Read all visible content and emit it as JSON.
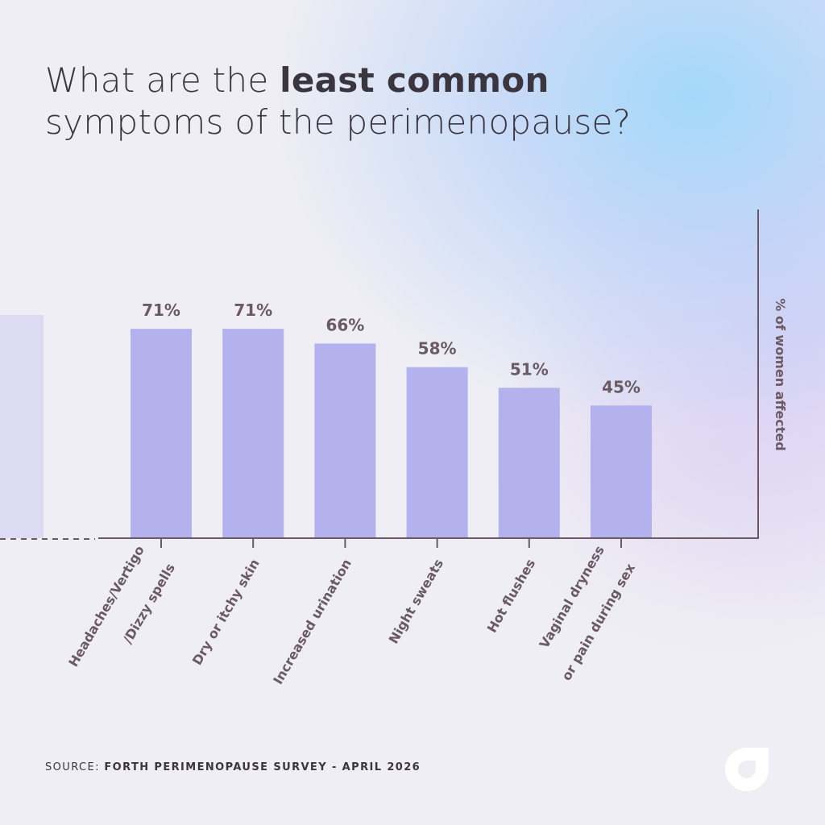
{
  "title": {
    "prefix": "What are the ",
    "bold": "least common",
    "line2": "symptoms of the perimenopause?"
  },
  "source": {
    "label": "SOURCE: ",
    "text": "FORTH PERIMENOPAUSE SURVEY - APRIL 2026"
  },
  "logo": {
    "icon": "forth-logo-icon",
    "color": "#ffffff"
  },
  "colors": {
    "bar": "#b3b2ee",
    "partial_bar": "#dcdbf3",
    "axis": "#6b5a64",
    "label_text": "#6b5a64",
    "title_text": "#3b3540"
  },
  "chart_data": {
    "type": "bar",
    "title": "What are the least common symptoms of the perimenopause?",
    "ylabel": "% of women affected",
    "ylim": [
      0,
      100
    ],
    "grid": false,
    "categories": [
      "Headaches/Vertigo\n/Dizzy spells",
      "Dry or itchy skin",
      "Increased urination",
      "Night sweats",
      "Hot flushes",
      "Vaginal dryness\nor pain during sex"
    ],
    "values": [
      71,
      71,
      66,
      58,
      51,
      45
    ],
    "value_labels": [
      "71%",
      "71%",
      "66%",
      "58%",
      "51%",
      "45%"
    ]
  }
}
